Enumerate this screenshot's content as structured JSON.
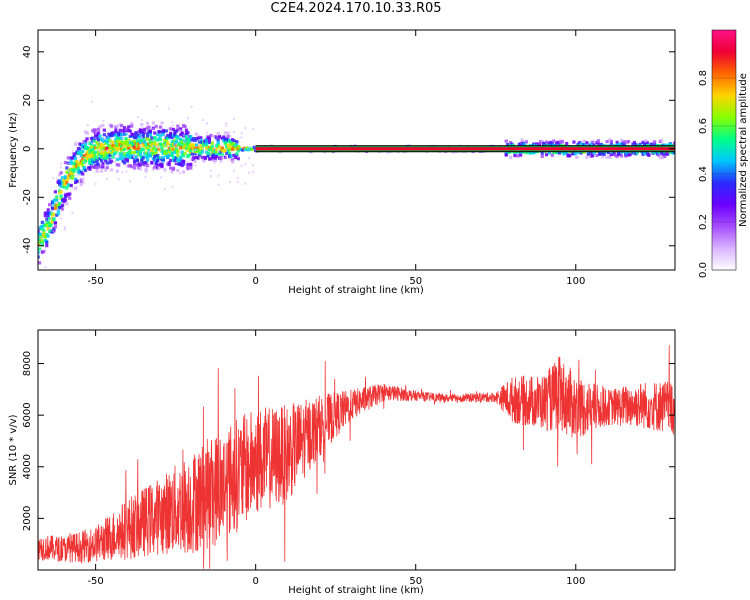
{
  "title": "C2E4.2024.170.10.33.R05",
  "colors": {
    "snr_line": "#ee3333",
    "zero_band": "#22aa44",
    "dark_border": "#000000",
    "colormap": [
      "#ffffff",
      "#d9b3ff",
      "#a64dff",
      "#6a00ff",
      "#2a2aff",
      "#00c8ff",
      "#00ff88",
      "#88ff00",
      "#ffd400",
      "#ff6600",
      "#ee0033",
      "#ff1188"
    ]
  },
  "chart_data": [
    {
      "type": "heatmap",
      "title": "C2E4.2024.170.10.33.R05",
      "xlabel": "Height of straight line (km)",
      "ylabel": "Frequency (Hz)",
      "xlim": [
        -68,
        131
      ],
      "ylim": [
        -50,
        49
      ],
      "xticks": [
        -50,
        0,
        50,
        100
      ],
      "yticks": [
        -40,
        -20,
        0,
        20,
        40
      ],
      "grid": false,
      "colorbar": {
        "label": "Normalized spectral amplitude",
        "range": [
          0,
          1
        ],
        "ticks": [
          0.0,
          0.2,
          0.4,
          0.6,
          0.8
        ]
      },
      "frequency_ridge": {
        "description_points": [
          {
            "x": -68,
            "y": -40
          },
          {
            "x": -64,
            "y": -30
          },
          {
            "x": -60,
            "y": -15
          },
          {
            "x": -55,
            "y": -5
          },
          {
            "x": -50,
            "y": 0
          },
          {
            "x": -40,
            "y": 1
          },
          {
            "x": -25,
            "y": 0.5
          },
          {
            "x": -10,
            "y": 0.5
          },
          {
            "x": 0,
            "y": 0
          },
          {
            "x": 131,
            "y": 0
          }
        ],
        "flat_line_range": [
          0,
          131
        ]
      }
    },
    {
      "type": "line",
      "xlabel": "Height of straight line (km)",
      "ylabel": "SNR (10 * v/v)",
      "xlim": [
        -68,
        131
      ],
      "ylim": [
        0,
        9300
      ],
      "xticks": [
        -50,
        0,
        50,
        100
      ],
      "yticks": [
        2000,
        4000,
        6000,
        8000
      ],
      "grid": false,
      "series": [
        {
          "envelope": [
            {
              "x": -68,
              "mean": 900,
              "spread": 500
            },
            {
              "x": -60,
              "mean": 800,
              "spread": 500
            },
            {
              "x": -50,
              "mean": 1000,
              "spread": 700
            },
            {
              "x": -40,
              "mean": 1600,
              "spread": 1200
            },
            {
              "x": -30,
              "mean": 2100,
              "spread": 1500
            },
            {
              "x": -20,
              "mean": 2600,
              "spread": 2000
            },
            {
              "x": -10,
              "mean": 3300,
              "spread": 2300
            },
            {
              "x": 0,
              "mean": 4200,
              "spread": 2100
            },
            {
              "x": 10,
              "mean": 4500,
              "spread": 1900
            },
            {
              "x": 20,
              "mean": 5600,
              "spread": 1200
            },
            {
              "x": 30,
              "mean": 6400,
              "spread": 600
            },
            {
              "x": 40,
              "mean": 6900,
              "spread": 350
            },
            {
              "x": 50,
              "mean": 6750,
              "spread": 200
            },
            {
              "x": 60,
              "mean": 6650,
              "spread": 150
            },
            {
              "x": 75,
              "mean": 6700,
              "spread": 200
            },
            {
              "x": 80,
              "mean": 6600,
              "spread": 900
            },
            {
              "x": 90,
              "mean": 6500,
              "spread": 1100
            },
            {
              "x": 95,
              "mean": 6800,
              "spread": 1500
            },
            {
              "x": 100,
              "mean": 6300,
              "spread": 1300
            },
            {
              "x": 110,
              "mean": 6300,
              "spread": 700
            },
            {
              "x": 120,
              "mean": 6400,
              "spread": 900
            },
            {
              "x": 131,
              "mean": 6300,
              "spread": 1100
            }
          ]
        }
      ]
    }
  ]
}
